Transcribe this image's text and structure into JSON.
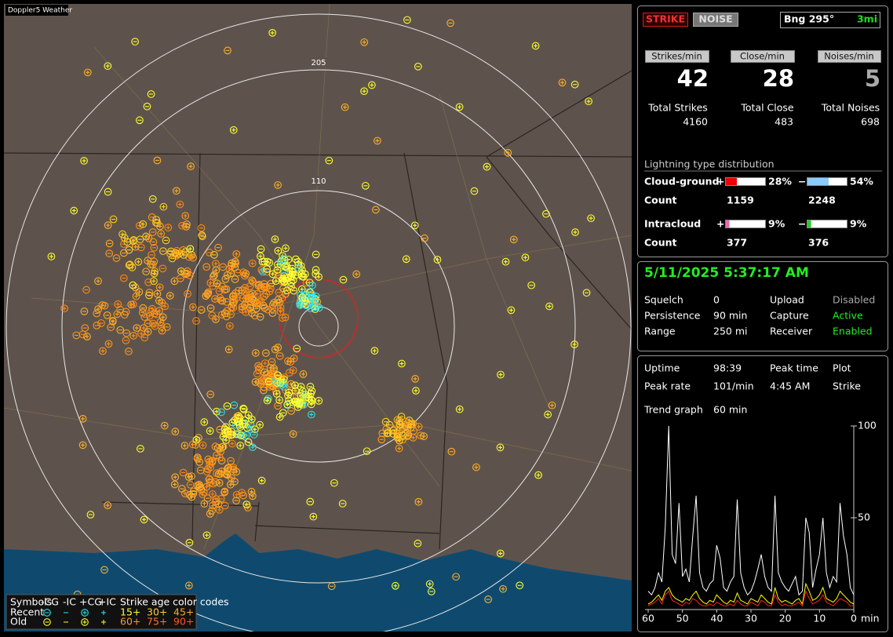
{
  "map": {
    "title": "Doppler5 Weather",
    "ring_labels": [
      "205",
      "110"
    ],
    "legend": {
      "header": [
        "Symbols",
        "-CG",
        "-IC",
        "+CG",
        "+IC",
        "Strike age color codes"
      ],
      "rows": [
        "Recent",
        "Old"
      ],
      "age_codes": [
        "15+",
        "30+",
        "45+",
        "60+",
        "75+",
        "90+"
      ]
    }
  },
  "controls": {
    "strike": "STRIKE",
    "noise": "NOISE",
    "bearing": "Bng 295°",
    "distance": "3mi"
  },
  "rates": [
    {
      "button": "Strikes/min",
      "value": 42,
      "total_label": "Total Strikes",
      "total": 4160
    },
    {
      "button": "Close/min",
      "value": 28,
      "total_label": "Total Close",
      "total": 483
    },
    {
      "button": "Noises/min",
      "value": 5,
      "total_label": "Total Noises",
      "total": 698
    }
  ],
  "distribution": {
    "title": "Lightning type distribution",
    "rows": [
      {
        "label": "Cloud-ground",
        "signs": [
          "+",
          "−"
        ],
        "percents": [
          28,
          54
        ],
        "percent_labels": [
          "28%",
          "54%"
        ],
        "count_label": "Count",
        "counts": [
          1159,
          2248
        ]
      },
      {
        "label": "Intracloud",
        "signs": [
          "+",
          "−"
        ],
        "percents": [
          9,
          9
        ],
        "percent_labels": [
          "9%",
          "9%"
        ],
        "count_label": "Count",
        "counts": [
          377,
          376
        ]
      }
    ]
  },
  "status": {
    "datetime": "5/11/2025 5:37:17 AM",
    "rows": [
      [
        "Squelch",
        "0",
        "Upload",
        "Disabled"
      ],
      [
        "Persistence",
        "90 min",
        "Capture",
        "Active"
      ],
      [
        "Range",
        "250 mi",
        "Receiver",
        "Enabled"
      ]
    ]
  },
  "uptime": {
    "rows": [
      [
        "Uptime",
        "98:39",
        "Peak time",
        "Plot"
      ],
      [
        "Peak rate",
        "101/min",
        "4:45 AM",
        "Strike"
      ]
    ],
    "trend_label": "Trend graph",
    "trend_span": "60 min"
  },
  "chart_data": {
    "type": "line",
    "x_label": "min",
    "x": [
      60,
      59,
      58,
      57,
      56,
      55,
      54,
      53,
      52,
      51,
      50,
      49,
      48,
      47,
      46,
      45,
      44,
      43,
      42,
      41,
      40,
      39,
      38,
      37,
      36,
      35,
      34,
      33,
      32,
      31,
      30,
      29,
      28,
      27,
      26,
      25,
      24,
      23,
      22,
      21,
      20,
      19,
      18,
      17,
      16,
      15,
      14,
      13,
      12,
      11,
      10,
      9,
      8,
      7,
      6,
      5,
      4,
      3,
      2,
      1,
      0
    ],
    "series": [
      {
        "color": "#ffffff",
        "values": [
          10,
          8,
          12,
          20,
          15,
          45,
          100,
          30,
          25,
          58,
          18,
          22,
          15,
          40,
          62,
          20,
          12,
          10,
          14,
          16,
          35,
          28,
          12,
          10,
          15,
          18,
          60,
          20,
          12,
          8,
          10,
          15,
          22,
          30,
          18,
          12,
          10,
          62,
          20,
          15,
          12,
          10,
          14,
          18,
          8,
          10,
          50,
          42,
          12,
          22,
          30,
          50,
          20,
          12,
          18,
          15,
          58,
          40,
          30,
          12,
          8
        ]
      },
      {
        "color": "#ffff00",
        "values": [
          3,
          4,
          6,
          8,
          5,
          10,
          12,
          8,
          6,
          5,
          4,
          6,
          5,
          8,
          10,
          6,
          4,
          3,
          5,
          4,
          8,
          6,
          4,
          3,
          5,
          4,
          9,
          5,
          4,
          3,
          6,
          5,
          4,
          8,
          6,
          4,
          3,
          12,
          6,
          4,
          5,
          4,
          3,
          5,
          6,
          3,
          14,
          10,
          5,
          6,
          8,
          12,
          6,
          5,
          4,
          6,
          10,
          8,
          6,
          4,
          3
        ]
      },
      {
        "color": "#ff2020",
        "values": [
          2,
          3,
          4,
          6,
          3,
          8,
          10,
          5,
          4,
          3,
          2,
          4,
          3,
          6,
          5,
          3,
          2,
          2,
          3,
          2,
          4,
          3,
          2,
          2,
          3,
          2,
          5,
          3,
          2,
          2,
          4,
          3,
          2,
          5,
          4,
          2,
          2,
          8,
          4,
          2,
          3,
          2,
          2,
          3,
          4,
          2,
          10,
          6,
          3,
          4,
          5,
          8,
          4,
          3,
          2,
          4,
          6,
          5,
          4,
          2,
          2
        ]
      }
    ],
    "xlim": [
      60,
      0
    ],
    "xticks": [
      60,
      50,
      40,
      30,
      20,
      10,
      0
    ],
    "ylim": [
      0,
      100
    ],
    "yticks": [
      50,
      100
    ]
  }
}
